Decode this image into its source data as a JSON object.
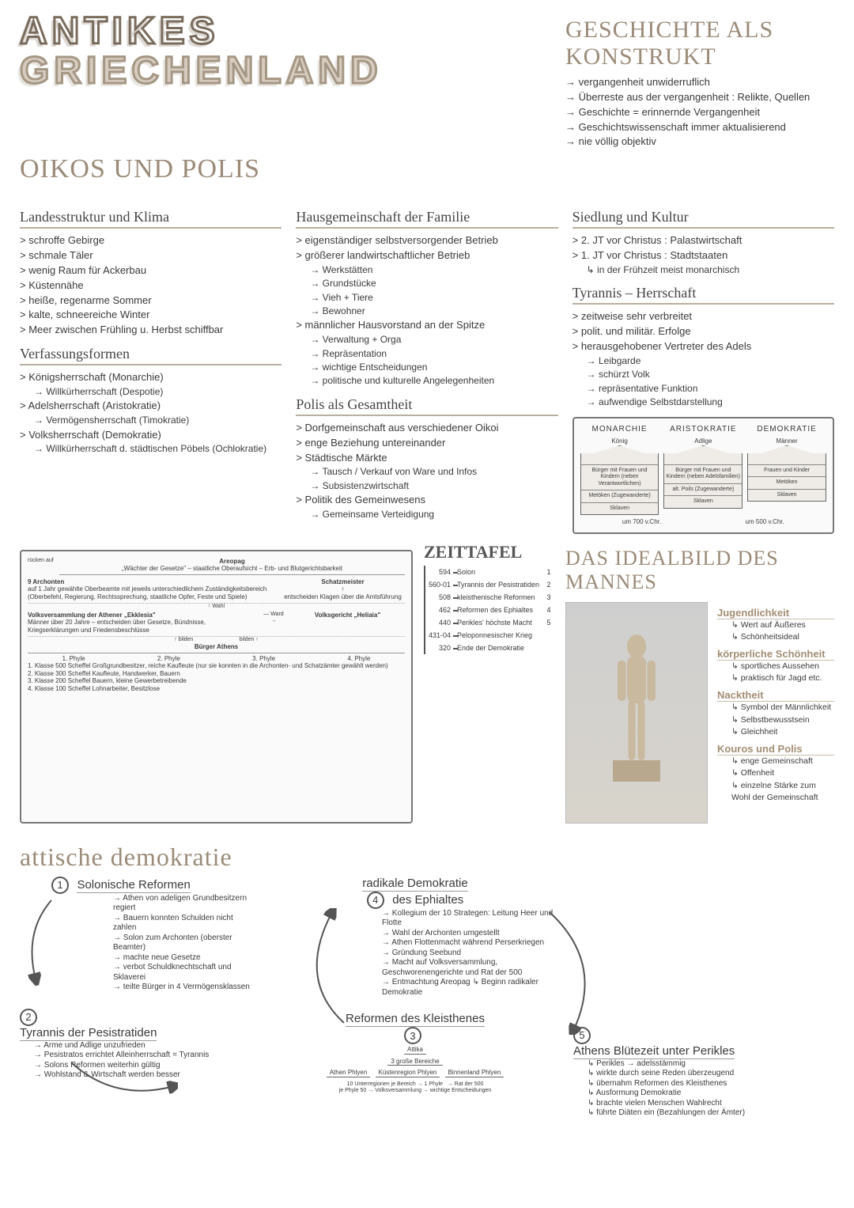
{
  "title": {
    "line1": "ANTIKES",
    "line2": "GRIECHENLAND"
  },
  "konstrukt": {
    "heading": "GESCHICHTE ALS KONSTRUKT",
    "items": [
      "vergangenheit unwiderruflich",
      "Überreste aus der vergangenheit : Relikte, Quellen",
      "Geschichte = erinnernde Vergangenheit",
      "Geschichtswissenschaft immer aktualisierend",
      "nie völlig objektiv"
    ]
  },
  "oikos_heading": "OIKOS UND POLIS",
  "landes": {
    "heading": "Landesstruktur und Klima",
    "items": [
      "schroffe Gebirge",
      "schmale Täler",
      "wenig Raum für Ackerbau",
      "Küstennähe",
      "heiße, regenarme Sommer",
      "kalte, schneereiche Winter",
      "Meer zwischen Frühling u. Herbst schiffbar"
    ]
  },
  "verfassung": {
    "heading": "Verfassungsformen",
    "items": [
      {
        "main": "Königsherrschaft (Monarchie)",
        "sub": "Willkürherrschaft (Despotie)"
      },
      {
        "main": "Adelsherrschaft (Aristokratie)",
        "sub": "Vermögensherrschaft (Timokratie)"
      },
      {
        "main": "Volksherrschaft (Demokratie)",
        "sub": "Willkürherrschaft d. städtischen Pöbels (Ochlokratie)"
      }
    ]
  },
  "haus": {
    "heading": "Hausgemeinschaft der Familie",
    "block1_main": "eigenständiger selbstversorgender Betrieb",
    "block2_main": "größerer landwirtschaftlicher Betrieb",
    "block2_sub": [
      "Werkstätten",
      "Grundstücke",
      "Vieh + Tiere",
      "Bewohner"
    ],
    "block3_main": "männlicher Hausvorstand an der Spitze",
    "block3_sub": [
      "Verwaltung + Orga",
      "Repräsentation",
      "wichtige Entscheidungen",
      "politische und kulturelle Angelegenheiten"
    ]
  },
  "polis": {
    "heading": "Polis als Gesamtheit",
    "items": [
      {
        "main": "Dorfgemeinschaft aus verschiedener Oikoi"
      },
      {
        "main": "enge Beziehung untereinander"
      },
      {
        "main": "Städtische Märkte",
        "sub": [
          "Tausch / Verkauf von Ware und Infos",
          "Subsistenzwirtschaft"
        ]
      },
      {
        "main": "Politik des Gemeinwesens",
        "sub": [
          "Gemeinsame Verteidigung"
        ]
      }
    ]
  },
  "siedlung": {
    "heading": "Siedlung und Kultur",
    "items": [
      {
        "main": "2. JT vor Christus : Palastwirtschaft"
      },
      {
        "main": "1. JT vor Christus : Stadtstaaten",
        "sub": [
          "in der Frühzeit meist monarchisch"
        ]
      }
    ]
  },
  "tyrannis": {
    "heading": "Tyrannis – Herrschaft",
    "items": [
      {
        "main": "zeitweise sehr verbreitet"
      },
      {
        "main": "polit. und militär. Erfolge"
      },
      {
        "main": "herausgehobener Vertreter des Adels",
        "sub": [
          "Leibgarde",
          "schürzt Volk",
          "repräsentative Funktion",
          "aufwendige Selbstdarstellung"
        ]
      }
    ]
  },
  "govt": {
    "cols": [
      "MONARCHIE",
      "ARISTOKRATIE",
      "DEMOKRATIE"
    ],
    "top": [
      "König",
      "Adlige",
      "Männer"
    ],
    "rows": [
      [
        "Bürger mit Frauen und Kindern (neben Verantwortlichen)",
        "Bürger mit Frauen und Kindern (neben Adelsfamilien)",
        "Frauen und Kinder"
      ],
      [
        "Metöken (Zugewanderte)",
        "alt. Poils (Zugewanderte)",
        "Metöken"
      ],
      [
        "Sklaven",
        "Sklaven",
        "Sklaven"
      ]
    ],
    "foot": [
      "um 700 v.Chr.",
      "um 500 v.Chr."
    ]
  },
  "areopag": {
    "title": "Areopag",
    "subtitle": "„Wächter der Gesetze\" – staatliche Oberaufsicht – Erb- und Blutgerichtsbarkeit",
    "ruecken": "rücken auf",
    "archonten_h": "9 Archonten",
    "archonten_t": "auf 1 Jahr gewählte Oberbeamte mit jeweils unterschiedlichem Zuständigkeitsbereich (Oberbefehl, Regierung, Rechtssprechung, staatliche Opfer, Feste und Spiele)",
    "schatz": "Schatzmeister",
    "wahl": "Wahl",
    "klagen": "entscheiden Klagen über die Amtsführung",
    "ekklesia_h": "Volksversammlung der Athener „Ekklesia\"",
    "ekklesia_t": "Männer über 20 Jahre – entscheiden über Gesetze, Bündnisse, Kriegserklärungen und Friedensbeschlüsse",
    "ward": "Ward",
    "heliaia": "Volksgericht „Heliaia\"",
    "bilden": "bilden",
    "buerger": "Bürger Athens",
    "phylen": [
      "1. Phyle",
      "2. Phyle",
      "3. Phyle",
      "4. Phyle"
    ],
    "klassen": [
      "1. Klasse  500 Scheffel  Großgrundbesitzer, reiche Kaufleute (nur sie konnten in die Archonten- und Schatzämter gewählt werden)",
      "2. Klasse  300 Scheffel  Kaufleute, Handwerker, Bauern",
      "3. Klasse  200 Scheffel  Bauern, kleine Gewerbetreibende",
      "4. Klasse  100 Scheffel  Lohnarbeiter, Besitzlose"
    ]
  },
  "zeit": {
    "heading": "ZEITTAFEL",
    "rows": [
      {
        "y": "594",
        "t": "Solon",
        "n": "1"
      },
      {
        "y": "560-01",
        "t": "Tyrannis der Pesistratiden",
        "n": "2"
      },
      {
        "y": "508",
        "t": "kleisthenische Reformen",
        "n": "3"
      },
      {
        "y": "462",
        "t": "Reformen des Ephialtes",
        "n": "4"
      },
      {
        "y": "440",
        "t": "Perikles' höchste Macht",
        "n": "5"
      },
      {
        "y": "431-04",
        "t": "Peloponnesischer Krieg",
        "n": ""
      },
      {
        "y": "320",
        "t": "Ende der Demokratie",
        "n": ""
      }
    ]
  },
  "attische": {
    "heading": "attische demokratie",
    "step1": {
      "n": "1",
      "title": "Solonische Reformen",
      "items": [
        "Athen von adeligen Grundbesitzern regiert",
        "Bauern konnten Schulden nicht zahlen",
        "Solon zum Archonten (oberster Beamter)",
        "machte neue Gesetze",
        "verbot Schuldknechtschaft und Sklaverei",
        "teilte Bürger in 4 Vermögensklassen"
      ]
    },
    "step2": {
      "n": "2",
      "title": "Tyrannis der Pesistratiden",
      "items": [
        "Arme und Adlige unzufrieden",
        "Pesistratos errichtet Alleinherrschaft = Tyrannis",
        "Solons Reformen weiterhin gültig",
        "Wohlstand & Wirtschaft werden besser"
      ]
    },
    "step3": {
      "n": "3",
      "title": "Reformen des Kleisthenes",
      "tree": {
        "root": "Attika",
        "mid": "3 große Bereiche",
        "leaves": [
          "Athen Phlyen",
          "Küstenregion Phlyen",
          "Binnenland Phlyen"
        ],
        "foot1": "10 Unterregionen je Bereich → 1 Phyle",
        "foot2": "→ Rat der 500",
        "foot3": "je Phyle 50 → Volksversammlung → wichtige Entscheidungen"
      }
    },
    "step4": {
      "n": "4",
      "pretitle": "radikale Demokratie",
      "title": "des Ephialtes",
      "items": [
        "Kollegium der 10 Strategen: Leitung Heer und Flotte",
        "Wahl der Archonten umgestellt",
        "Athen Flottenmacht während Perserkriegen",
        "Gründung Seebund",
        "Macht auf Volksversammlung, Geschworenengerichte und Rat der 500",
        "Entmachtung Areopag ↳ Beginn radikaler Demokratie"
      ]
    },
    "step5": {
      "n": "5",
      "title": "Athens Blütezeit unter Perikles",
      "items": [
        "Perikles → adelsstämmig",
        "wirkte durch seine Reden überzeugend",
        "übernahm Reformen des Kleisthenes",
        "Ausformung Demokratie",
        "brachte vielen Menschen Wahlrecht",
        "führte Diäten ein (Bezahlungen der Ämter)"
      ]
    }
  },
  "ideal": {
    "heading": "DAS IDEALBILD DES MANNES",
    "sections": [
      {
        "h": "Jugendlichkeit",
        "items": [
          "Wert auf Äußeres",
          "Schönheitsideal"
        ]
      },
      {
        "h": "körperliche Schönheit",
        "items": [
          "sportliches Aussehen",
          "praktisch für Jagd etc."
        ]
      },
      {
        "h": "Nacktheit",
        "items": [
          "Symbol der Männlichkeit",
          "Selbstbewusstsein",
          "Gleichheit"
        ]
      },
      {
        "h": "Kouros und Polis",
        "items": [
          "enge Gemeinschaft",
          "Offenheit",
          "einzelne Stärke zum Wohl der Gemeinschaft"
        ]
      }
    ]
  },
  "colors": {
    "accent": "#9b8b78",
    "ink": "#3a3a3a",
    "box_bg": "#efece7"
  }
}
